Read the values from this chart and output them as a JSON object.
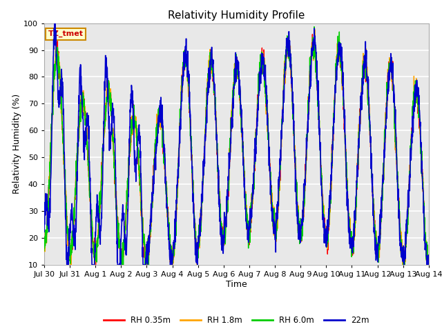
{
  "title": "Relativity Humidity Profile",
  "xlabel": "Time",
  "ylabel": "Relativity Humidity (%)",
  "ylim": [
    10,
    100
  ],
  "yticks": [
    10,
    20,
    30,
    40,
    50,
    60,
    70,
    80,
    90,
    100
  ],
  "xtick_labels": [
    "Jul 30",
    "Jul 31",
    "Aug 1",
    "Aug 2",
    "Aug 3",
    "Aug 4",
    "Aug 5",
    "Aug 6",
    "Aug 7",
    "Aug 8",
    "Aug 9",
    "Aug 10",
    "Aug 11",
    "Aug 12",
    "Aug 13",
    "Aug 14"
  ],
  "annotation_text": "TZ_tmet",
  "annotation_color": "#cc0000",
  "annotation_bg": "#ffffcc",
  "annotation_border": "#cc8800",
  "colors": {
    "RH 0.35m": "#ff0000",
    "RH 1.8m": "#ffa500",
    "RH 6.0m": "#00cc00",
    "22m": "#0000cc"
  },
  "legend_labels": [
    "RH 0.35m",
    "RH 1.8m",
    "RH 6.0m",
    "22m"
  ],
  "plot_bg": "#e8e8e8",
  "fig_bg": "#ffffff",
  "grid_color": "#ffffff",
  "title_fontsize": 11,
  "axis_fontsize": 9,
  "tick_fontsize": 8
}
